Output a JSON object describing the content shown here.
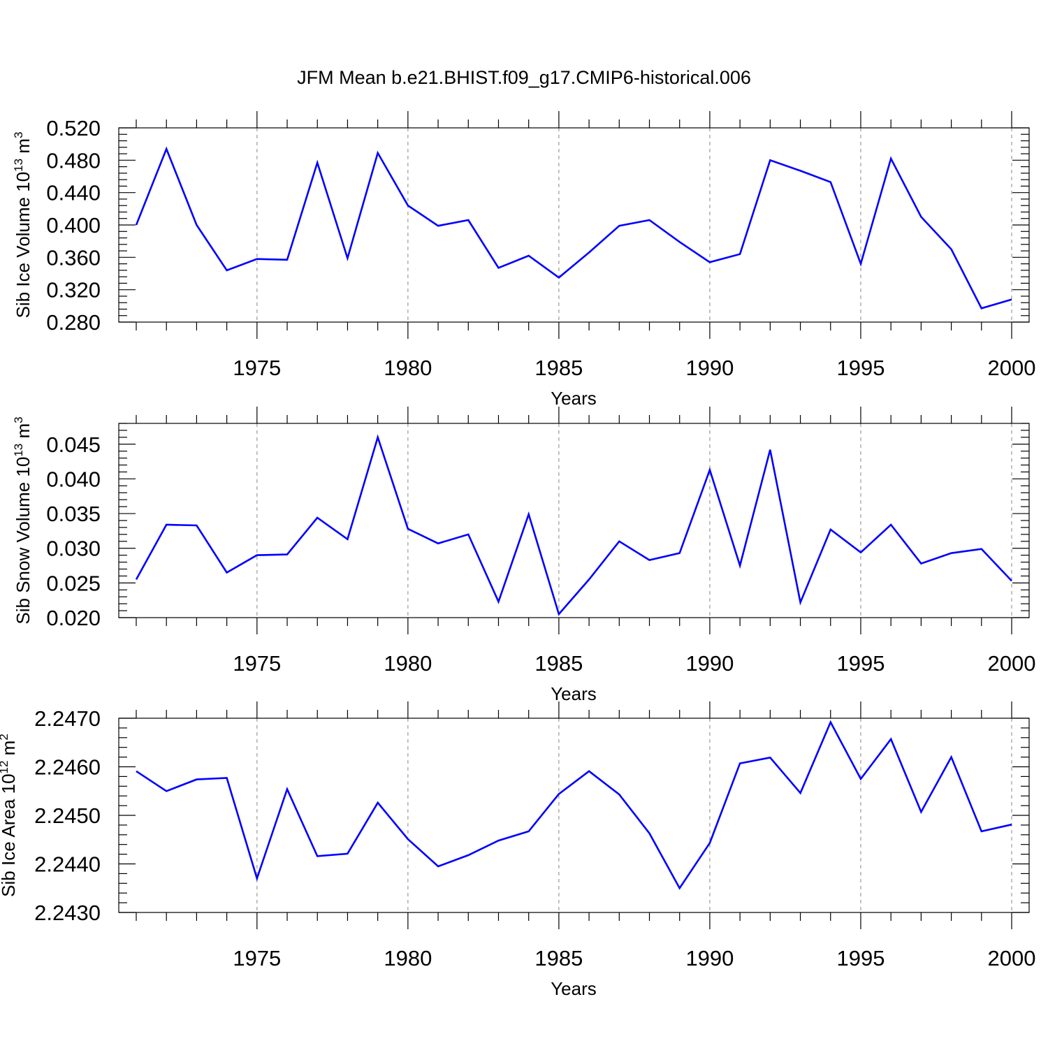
{
  "title": "JFM Mean b.e21.BHIST.f09_g17.CMIP6-historical.006",
  "line_color": "#0000ff",
  "chart_data": [
    {
      "type": "line",
      "ylabel": "Sib Ice Volume 10",
      "ylabel_exp": "13",
      "ylabel_unit": " m",
      "ylabel_unit_exp": "3",
      "xlabel": "Years",
      "xlim": [
        1971,
        2000
      ],
      "ylim": [
        0.28,
        0.52
      ],
      "yticks": [
        0.28,
        0.32,
        0.36,
        0.4,
        0.44,
        0.48,
        0.52
      ],
      "ytick_labels": [
        "0.280",
        "0.320",
        "0.360",
        "0.400",
        "0.440",
        "0.480",
        "0.520"
      ],
      "xticks": [
        1975,
        1980,
        1985,
        1990,
        1995,
        2000
      ],
      "xtick_labels": [
        "1975",
        "1980",
        "1985",
        "1990",
        "1995",
        "2000"
      ],
      "x": [
        1971,
        1972,
        1973,
        1974,
        1975,
        1976,
        1977,
        1978,
        1979,
        1980,
        1981,
        1982,
        1983,
        1984,
        1985,
        1986,
        1987,
        1988,
        1989,
        1990,
        1991,
        1992,
        1993,
        1994,
        1995,
        1996,
        1997,
        1998,
        1999,
        2000
      ],
      "values": [
        0.4,
        0.494,
        0.4,
        0.344,
        0.358,
        0.357,
        0.477,
        0.359,
        0.489,
        0.424,
        0.399,
        0.406,
        0.347,
        0.362,
        0.335,
        0.366,
        0.399,
        0.406,
        0.379,
        0.354,
        0.364,
        0.48,
        0.467,
        0.453,
        0.352,
        0.482,
        0.41,
        0.37,
        0.297,
        0.308
      ]
    },
    {
      "type": "line",
      "ylabel": "Sib Snow Volume 10",
      "ylabel_exp": "13",
      "ylabel_unit": " m",
      "ylabel_unit_exp": "3",
      "xlabel": "Years",
      "xlim": [
        1971,
        2000
      ],
      "ylim": [
        0.02,
        0.048
      ],
      "yticks": [
        0.02,
        0.025,
        0.03,
        0.035,
        0.04,
        0.045
      ],
      "ytick_labels": [
        "0.020",
        "0.025",
        "0.030",
        "0.035",
        "0.040",
        "0.045"
      ],
      "xticks": [
        1975,
        1980,
        1985,
        1990,
        1995,
        2000
      ],
      "xtick_labels": [
        "1975",
        "1980",
        "1985",
        "1990",
        "1995",
        "2000"
      ],
      "x": [
        1971,
        1972,
        1973,
        1974,
        1975,
        1976,
        1977,
        1978,
        1979,
        1980,
        1981,
        1982,
        1983,
        1984,
        1985,
        1986,
        1987,
        1988,
        1989,
        1990,
        1991,
        1992,
        1993,
        1994,
        1995,
        1996,
        1997,
        1998,
        1999,
        2000
      ],
      "values": [
        0.0255,
        0.0334,
        0.0333,
        0.0265,
        0.029,
        0.0291,
        0.0344,
        0.0313,
        0.046,
        0.0328,
        0.0307,
        0.032,
        0.0223,
        0.0349,
        0.0205,
        0.0255,
        0.031,
        0.0283,
        0.0293,
        0.0413,
        0.0275,
        0.0442,
        0.0222,
        0.0327,
        0.0294,
        0.0334,
        0.0278,
        0.0293,
        0.0299,
        0.0253
      ]
    },
    {
      "type": "line",
      "ylabel": "Sib Ice Area 10",
      "ylabel_exp": "12",
      "ylabel_unit": " m",
      "ylabel_unit_exp": "2",
      "xlabel": "Years",
      "xlim": [
        1971,
        2000
      ],
      "ylim": [
        2.243,
        2.247
      ],
      "yticks": [
        2.243,
        2.244,
        2.245,
        2.246,
        2.247
      ],
      "ytick_labels": [
        "2.2430",
        "2.2440",
        "2.2450",
        "2.2460",
        "2.2470"
      ],
      "xticks": [
        1975,
        1980,
        1985,
        1990,
        1995,
        2000
      ],
      "xtick_labels": [
        "1975",
        "1980",
        "1985",
        "1990",
        "1995",
        "2000"
      ],
      "x": [
        1971,
        1972,
        1973,
        1974,
        1975,
        1976,
        1977,
        1978,
        1979,
        1980,
        1981,
        1982,
        1983,
        1984,
        1985,
        1986,
        1987,
        1988,
        1989,
        1990,
        1991,
        1992,
        1993,
        1994,
        1995,
        1996,
        1997,
        1998,
        1999,
        2000
      ],
      "values": [
        2.24591,
        2.2455,
        2.24574,
        2.24577,
        2.2437,
        2.24554,
        2.24416,
        2.24421,
        2.24526,
        2.24451,
        2.24395,
        2.24418,
        2.24448,
        2.24467,
        2.24544,
        2.24591,
        2.24543,
        2.24463,
        2.2435,
        2.24443,
        2.24607,
        2.24619,
        2.24546,
        2.24692,
        2.24575,
        2.24657,
        2.24507,
        2.2462,
        2.24467,
        2.24481
      ]
    }
  ]
}
